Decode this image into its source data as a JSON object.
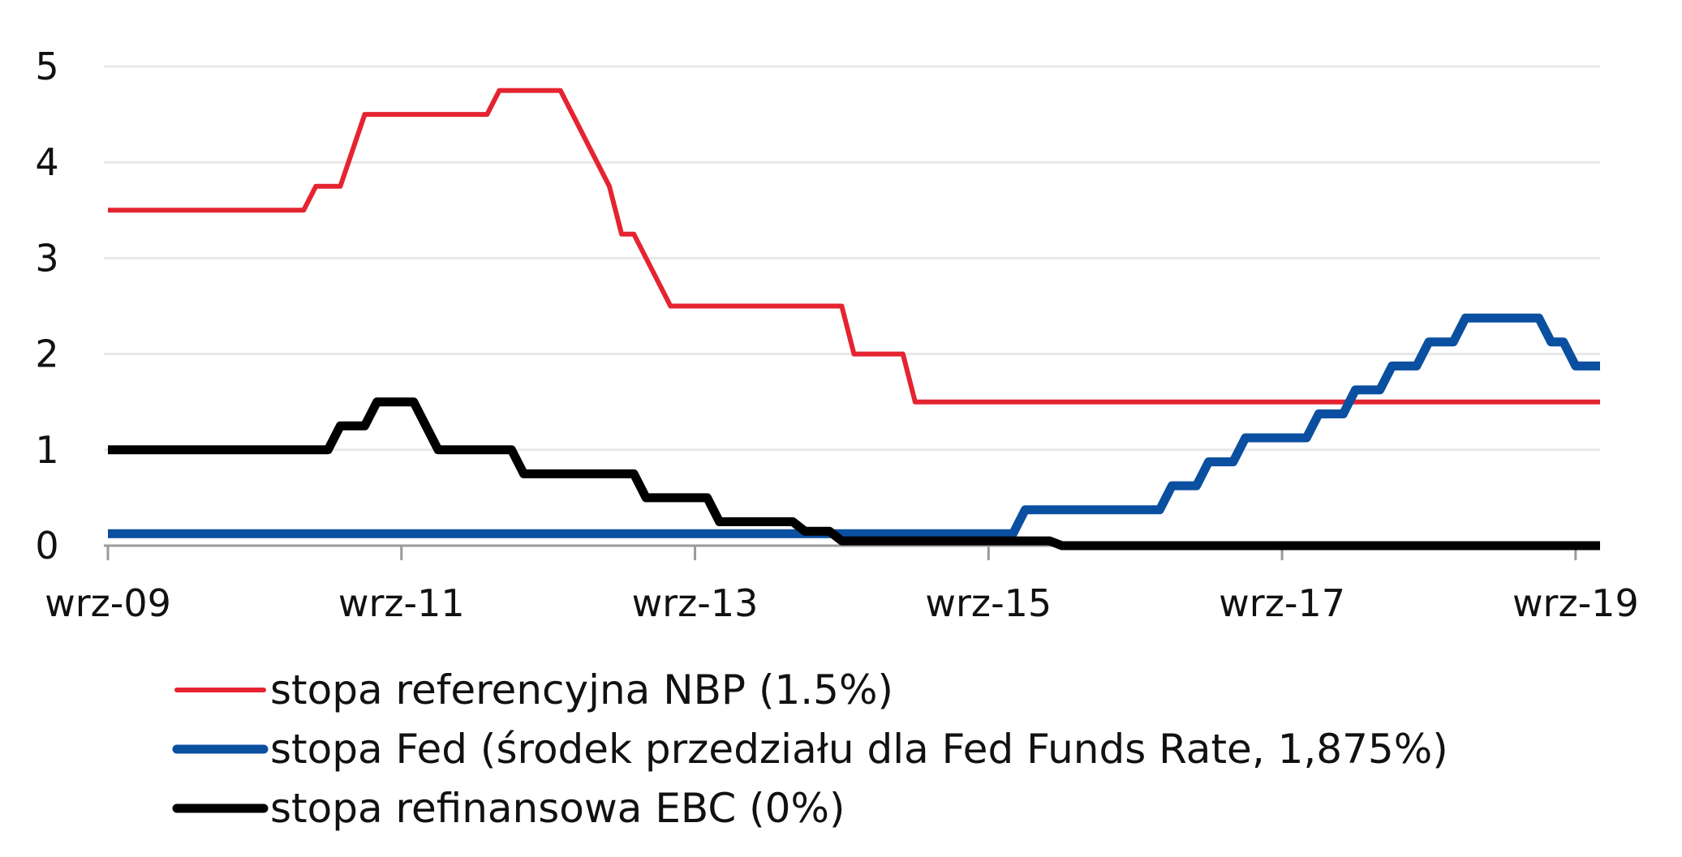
{
  "chart_data": {
    "type": "line",
    "title": "",
    "xlabel": "",
    "ylabel": "",
    "x_range": [
      "2009-09",
      "2019-11"
    ],
    "ylim": [
      0,
      5
    ],
    "y_ticks": [
      "0",
      "1",
      "2",
      "3",
      "4",
      "5"
    ],
    "x_ticks": [
      {
        "date": "2009-09",
        "label": "wrz-09"
      },
      {
        "date": "2011-09",
        "label": "wrz-11"
      },
      {
        "date": "2013-09",
        "label": "wrz-13"
      },
      {
        "date": "2015-09",
        "label": "wrz-15"
      },
      {
        "date": "2017-09",
        "label": "wrz-17"
      },
      {
        "date": "2019-09",
        "label": "wrz-19"
      }
    ],
    "grid": "horizontal",
    "legend_position": "bottom-left",
    "series": [
      {
        "name": "stopa referencyjna NBP (1.5%)",
        "color": "#e52431",
        "points": [
          [
            "2009-09",
            3.5
          ],
          [
            "2011-01",
            3.5
          ],
          [
            "2011-02",
            3.75
          ],
          [
            "2011-04",
            3.75
          ],
          [
            "2011-06",
            4.5
          ],
          [
            "2012-04",
            4.5
          ],
          [
            "2012-05",
            4.75
          ],
          [
            "2012-10",
            4.75
          ],
          [
            "2013-02",
            3.75
          ],
          [
            "2013-03",
            3.25
          ],
          [
            "2013-04",
            3.25
          ],
          [
            "2013-07",
            2.5
          ],
          [
            "2014-09",
            2.5
          ],
          [
            "2014-10",
            2.0
          ],
          [
            "2015-02",
            2.0
          ],
          [
            "2015-03",
            1.5
          ],
          [
            "2019-11",
            1.5
          ]
        ]
      },
      {
        "name": "stopa Fed (środek przedziału dla Fed Funds Rate, 1,875%)",
        "color": "#0a4fa0",
        "points": [
          [
            "2009-09",
            0.125
          ],
          [
            "2015-11",
            0.125
          ],
          [
            "2015-12",
            0.375
          ],
          [
            "2016-11",
            0.375
          ],
          [
            "2016-12",
            0.625
          ],
          [
            "2017-02",
            0.625
          ],
          [
            "2017-03",
            0.875
          ],
          [
            "2017-05",
            0.875
          ],
          [
            "2017-06",
            1.125
          ],
          [
            "2017-11",
            1.125
          ],
          [
            "2017-12",
            1.375
          ],
          [
            "2018-02",
            1.375
          ],
          [
            "2018-03",
            1.625
          ],
          [
            "2018-05",
            1.625
          ],
          [
            "2018-06",
            1.875
          ],
          [
            "2018-08",
            1.875
          ],
          [
            "2018-09",
            2.125
          ],
          [
            "2018-11",
            2.125
          ],
          [
            "2018-12",
            2.375
          ],
          [
            "2019-06",
            2.375
          ],
          [
            "2019-07",
            2.125
          ],
          [
            "2019-08",
            2.125
          ],
          [
            "2019-09",
            1.875
          ],
          [
            "2019-11",
            1.875
          ]
        ]
      },
      {
        "name": "stopa refinansowa EBC (0%)",
        "color": "#000000",
        "points": [
          [
            "2009-09",
            1.0
          ],
          [
            "2011-03",
            1.0
          ],
          [
            "2011-04",
            1.25
          ],
          [
            "2011-06",
            1.25
          ],
          [
            "2011-07",
            1.5
          ],
          [
            "2011-10",
            1.5
          ],
          [
            "2011-11",
            1.25
          ],
          [
            "2011-12",
            1.0
          ],
          [
            "2012-06",
            1.0
          ],
          [
            "2012-07",
            0.75
          ],
          [
            "2013-04",
            0.75
          ],
          [
            "2013-05",
            0.5
          ],
          [
            "2013-10",
            0.5
          ],
          [
            "2013-11",
            0.25
          ],
          [
            "2014-05",
            0.25
          ],
          [
            "2014-06",
            0.15
          ],
          [
            "2014-08",
            0.15
          ],
          [
            "2014-09",
            0.05
          ],
          [
            "2016-02",
            0.05
          ],
          [
            "2016-03",
            0.0
          ],
          [
            "2019-11",
            0.0
          ]
        ]
      }
    ]
  }
}
